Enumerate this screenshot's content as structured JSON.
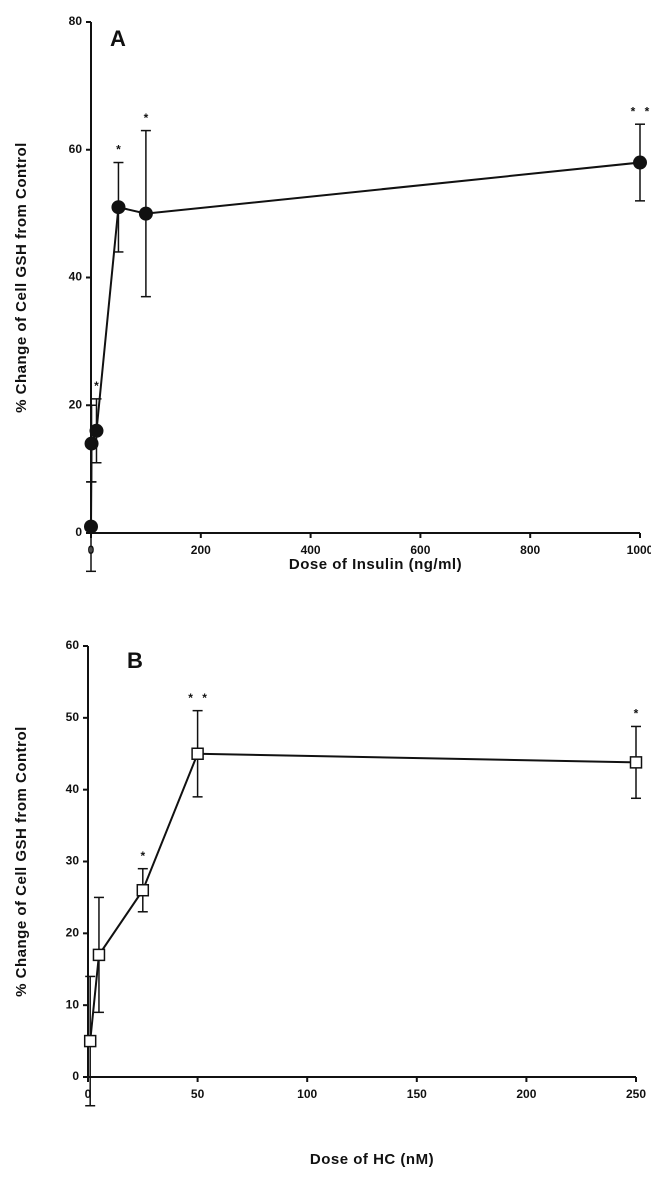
{
  "chart_data": [
    {
      "type": "line",
      "panel_label": "A",
      "x_label": "Dose of Insulin (ng/ml)",
      "y_label": "% Change of Cell GSH from Control",
      "marker": "circle-filled",
      "color": "#111111",
      "x": [
        0,
        1,
        10,
        50,
        100,
        1000
      ],
      "values": [
        1,
        14,
        16,
        51,
        50,
        58
      ],
      "errors": [
        7,
        6,
        5,
        7,
        13,
        6
      ],
      "annotations": [
        null,
        null,
        "*",
        "*",
        "*",
        "* *"
      ],
      "xlim": [
        0,
        1000
      ],
      "xticks": [
        0,
        200,
        400,
        600,
        800,
        1000
      ],
      "ylim": [
        0,
        80
      ],
      "yticks": [
        0,
        20,
        40,
        60,
        80
      ]
    },
    {
      "type": "line",
      "panel_label": "B",
      "x_label": "Dose of HC (nM)",
      "y_label": "% Change of Cell GSH from Control",
      "marker": "square-open",
      "color": "#111111",
      "x": [
        1,
        5,
        25,
        50,
        250
      ],
      "values": [
        5,
        17,
        26,
        45,
        43.8
      ],
      "errors": [
        9,
        8,
        3,
        6,
        5
      ],
      "annotations": [
        null,
        null,
        "*",
        "* *",
        "*"
      ],
      "xlim": [
        0,
        250
      ],
      "xticks": [
        0,
        50,
        100,
        150,
        200,
        250
      ],
      "ylim": [
        0,
        60
      ],
      "yticks": [
        0,
        10,
        20,
        30,
        40,
        50,
        60
      ]
    }
  ]
}
